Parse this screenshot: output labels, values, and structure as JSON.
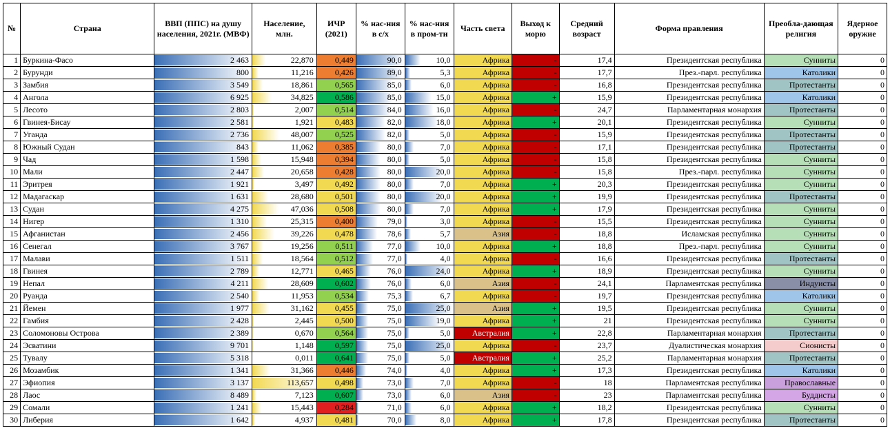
{
  "headers": {
    "num": "№",
    "country": "Страна",
    "gdp": "ВВП (ППС) на душу населения, 2021г. (МВФ)",
    "pop": "Население, млн.",
    "hdi": "ИЧР (2021)",
    "agr": "% нас-ния в с/х",
    "ind": "% нас-ния в пром-ти",
    "cont": "Часть света",
    "sea": "Выход к морю",
    "age": "Средний возраст",
    "gov": "Форма правления",
    "rel": "Преобла-дающая религия",
    "nuke": "Ядерное оружие"
  },
  "scales": {
    "gdp_grad": [
      "#3b6fb6",
      "#ffffff"
    ],
    "pop_grad": [
      "#f2d952",
      "#ffffff"
    ],
    "agr_grad": [
      "#3b6fb6",
      "#ffffff"
    ],
    "ind_grad": [
      "#3b6fb6",
      "#ffffff"
    ],
    "gdp_max_frac": 0.98,
    "pop_max": 113.657,
    "agr_min": 70,
    "agr_max": 90,
    "ind_min": 3,
    "ind_max": 25
  },
  "hdi_stops": [
    {
      "v": 0.284,
      "c": "#e02020"
    },
    {
      "v": 0.385,
      "c": "#ed7d31"
    },
    {
      "v": 0.394,
      "c": "#ed7d31"
    },
    {
      "v": 0.4,
      "c": "#ed7d31"
    },
    {
      "v": 0.426,
      "c": "#ed7d31"
    },
    {
      "v": 0.428,
      "c": "#ed7d31"
    },
    {
      "v": 0.446,
      "c": "#ed7d31"
    },
    {
      "v": 0.449,
      "c": "#ed7d31"
    },
    {
      "v": 0.455,
      "c": "#f2d952"
    },
    {
      "v": 0.465,
      "c": "#f2d952"
    },
    {
      "v": 0.478,
      "c": "#f2d952"
    },
    {
      "v": 0.481,
      "c": "#f2d952"
    },
    {
      "v": 0.483,
      "c": "#f2d952"
    },
    {
      "v": 0.492,
      "c": "#f2d952"
    },
    {
      "v": 0.498,
      "c": "#f2d952"
    },
    {
      "v": 0.5,
      "c": "#f2d952"
    },
    {
      "v": 0.501,
      "c": "#f2d952"
    },
    {
      "v": 0.508,
      "c": "#f2d952"
    },
    {
      "v": 0.511,
      "c": "#92d050"
    },
    {
      "v": 0.512,
      "c": "#92d050"
    },
    {
      "v": 0.514,
      "c": "#92d050"
    },
    {
      "v": 0.525,
      "c": "#92d050"
    },
    {
      "v": 0.534,
      "c": "#92d050"
    },
    {
      "v": 0.564,
      "c": "#92d050"
    },
    {
      "v": 0.565,
      "c": "#92d050"
    },
    {
      "v": 0.586,
      "c": "#00b050"
    },
    {
      "v": 0.597,
      "c": "#00b050"
    },
    {
      "v": 0.602,
      "c": "#00b050"
    },
    {
      "v": 0.607,
      "c": "#00b050"
    },
    {
      "v": 0.641,
      "c": "#00b050"
    }
  ],
  "continent_colors": {
    "Африка": "#f2d952",
    "Азия": "#d9c189",
    "Австралия": "#c00000"
  },
  "sea_colors": {
    "+": "#00b050",
    "-": "#c00000"
  },
  "religion_colors": {
    "Сунниты": "#b7dfb7",
    "Католики": "#9fc5e8",
    "Протестанты": "#a0c4c4",
    "Индуисты": "#8a8fa8",
    "Сионисты": "#f4cccc",
    "Православные": "#c9a0dc",
    "Буддисты": "#d5a6e6"
  },
  "rows": [
    {
      "n": 1,
      "country": "Буркина-Фасо",
      "gdp": "2 463",
      "pop": "22,870",
      "hdi": "0,449",
      "hv": 0.449,
      "agr": "90,0",
      "av": 90,
      "ind": "10,0",
      "iv": 10,
      "cont": "Африка",
      "sea": "-",
      "age": "17,4",
      "gov": "Президентская республика",
      "rel": "Сунниты",
      "nuke": "0"
    },
    {
      "n": 2,
      "country": "Бурунди",
      "gdp": "800",
      "pop": "11,216",
      "hdi": "0,426",
      "hv": 0.426,
      "agr": "89,0",
      "av": 89,
      "ind": "5,3",
      "iv": 5.3,
      "cont": "Африка",
      "sea": "-",
      "age": "17,7",
      "gov": "През.-парл. республика",
      "rel": "Католики",
      "nuke": "0"
    },
    {
      "n": 3,
      "country": "Замбия",
      "gdp": "3 549",
      "pop": "18,861",
      "hdi": "0,565",
      "hv": 0.565,
      "agr": "85,0",
      "av": 85,
      "ind": "6,0",
      "iv": 6,
      "cont": "Африка",
      "sea": "-",
      "age": "16,8",
      "gov": "Президентская республика",
      "rel": "Протестанты",
      "nuke": "0"
    },
    {
      "n": 4,
      "country": "Ангола",
      "gdp": "6 925",
      "pop": "34,825",
      "hdi": "0,586",
      "hv": 0.586,
      "agr": "85,0",
      "av": 85,
      "ind": "15,0",
      "iv": 15,
      "cont": "Африка",
      "sea": "+",
      "age": "15,9",
      "gov": "Президентская республика",
      "rel": "Католики",
      "nuke": "0"
    },
    {
      "n": 5,
      "country": "Лесото",
      "gdp": "2 803",
      "pop": "2,007",
      "hdi": "0,514",
      "hv": 0.514,
      "agr": "84,0",
      "av": 84,
      "ind": "16,0",
      "iv": 16,
      "cont": "Африка",
      "sea": "-",
      "age": "24,7",
      "gov": "Парламентарная монархия",
      "rel": "Протестанты",
      "nuke": "0"
    },
    {
      "n": 6,
      "country": "Гвинея-Бисау",
      "gdp": "2 581",
      "pop": "1,921",
      "hdi": "0,483",
      "hv": 0.483,
      "agr": "82,0",
      "av": 82,
      "ind": "18,0",
      "iv": 18,
      "cont": "Африка",
      "sea": "+",
      "age": "20,1",
      "gov": "Президентская республика",
      "rel": "Сунниты",
      "nuke": "0"
    },
    {
      "n": 7,
      "country": "Уганда",
      "gdp": "2 736",
      "pop": "48,007",
      "hdi": "0,525",
      "hv": 0.525,
      "agr": "82,0",
      "av": 82,
      "ind": "5,0",
      "iv": 5,
      "cont": "Африка",
      "sea": "-",
      "age": "15,9",
      "gov": "Президентская республика",
      "rel": "Протестанты",
      "nuke": "0"
    },
    {
      "n": 8,
      "country": "Южный Судан",
      "gdp": "843",
      "pop": "11,062",
      "hdi": "0,385",
      "hv": 0.385,
      "agr": "80,0",
      "av": 80,
      "ind": "7,0",
      "iv": 7,
      "cont": "Африка",
      "sea": "-",
      "age": "17,1",
      "gov": "Президентская республика",
      "rel": "Протестанты",
      "nuke": "0"
    },
    {
      "n": 9,
      "country": "Чад",
      "gdp": "1 598",
      "pop": "15,948",
      "hdi": "0,394",
      "hv": 0.394,
      "agr": "80,0",
      "av": 80,
      "ind": "5,0",
      "iv": 5,
      "cont": "Африка",
      "sea": "-",
      "age": "15,8",
      "gov": "Президентская республика",
      "rel": "Сунниты",
      "nuke": "0"
    },
    {
      "n": 10,
      "country": "Мали",
      "gdp": "2 447",
      "pop": "20,658",
      "hdi": "0,428",
      "hv": 0.428,
      "agr": "80,0",
      "av": 80,
      "ind": "20,0",
      "iv": 20,
      "cont": "Африка",
      "sea": "-",
      "age": "15,8",
      "gov": "През.-парл. республика",
      "rel": "Сунниты",
      "nuke": "0"
    },
    {
      "n": 11,
      "country": "Эритрея",
      "gdp": "1 921",
      "pop": "3,497",
      "hdi": "0,492",
      "hv": 0.492,
      "agr": "80,0",
      "av": 80,
      "ind": "7,0",
      "iv": 7,
      "cont": "Африка",
      "sea": "+",
      "age": "20,3",
      "gov": "Президентская республика",
      "rel": "Сунниты",
      "nuke": "0"
    },
    {
      "n": 12,
      "country": "Мадагаскар",
      "gdp": "1 631",
      "pop": "28,680",
      "hdi": "0,501",
      "hv": 0.501,
      "agr": "80,0",
      "av": 80,
      "ind": "20,0",
      "iv": 20,
      "cont": "Африка",
      "sea": "+",
      "age": "19,9",
      "gov": "Президентская республика",
      "rel": "Протестанты",
      "nuke": "0"
    },
    {
      "n": 13,
      "country": "Судан",
      "gdp": "4 275",
      "pop": "47,036",
      "hdi": "0,508",
      "hv": 0.508,
      "agr": "80,0",
      "av": 80,
      "ind": "7,0",
      "iv": 7,
      "cont": "Африка",
      "sea": "+",
      "age": "17,9",
      "gov": "Президентская республика",
      "rel": "Сунниты",
      "nuke": "0"
    },
    {
      "n": 14,
      "country": "Нигер",
      "gdp": "1 310",
      "pop": "25,315",
      "hdi": "0,400",
      "hv": 0.4,
      "agr": "79,0",
      "av": 79,
      "ind": "3,0",
      "iv": 3,
      "cont": "Африка",
      "sea": "-",
      "age": "15,5",
      "gov": "Президентская республика",
      "rel": "Сунниты",
      "nuke": "0"
    },
    {
      "n": 15,
      "country": "Афганистан",
      "gdp": "2 456",
      "pop": "39,226",
      "hdi": "0,478",
      "hv": 0.478,
      "agr": "78,6",
      "av": 78.6,
      "ind": "5,7",
      "iv": 5.7,
      "cont": "Азия",
      "sea": "-",
      "age": "18,8",
      "gov": "Исламская республика",
      "rel": "Сунниты",
      "nuke": "0"
    },
    {
      "n": 16,
      "country": "Сенегал",
      "gdp": "3 767",
      "pop": "19,256",
      "hdi": "0,511",
      "hv": 0.511,
      "agr": "77,0",
      "av": 77,
      "ind": "10,0",
      "iv": 10,
      "cont": "Африка",
      "sea": "+",
      "age": "18,8",
      "gov": "През.-парл. республика",
      "rel": "Сунниты",
      "nuke": "0"
    },
    {
      "n": 17,
      "country": "Малави",
      "gdp": "1 511",
      "pop": "18,564",
      "hdi": "0,512",
      "hv": 0.512,
      "agr": "77,0",
      "av": 77,
      "ind": "4,0",
      "iv": 4,
      "cont": "Африка",
      "sea": "-",
      "age": "16,6",
      "gov": "Президентская республика",
      "rel": "Протестанты",
      "nuke": "0"
    },
    {
      "n": 18,
      "country": "Гвинея",
      "gdp": "2 789",
      "pop": "12,771",
      "hdi": "0,465",
      "hv": 0.465,
      "agr": "76,0",
      "av": 76,
      "ind": "24,0",
      "iv": 24,
      "cont": "Африка",
      "sea": "+",
      "age": "18,9",
      "gov": "Президентская республика",
      "rel": "Сунниты",
      "nuke": "0"
    },
    {
      "n": 19,
      "country": "Непал",
      "gdp": "4 211",
      "pop": "28,609",
      "hdi": "0,602",
      "hv": 0.602,
      "agr": "76,0",
      "av": 76,
      "ind": "6,0",
      "iv": 6,
      "cont": "Азия",
      "sea": "-",
      "age": "24,1",
      "gov": "Парламентская республика",
      "rel": "Индуисты",
      "nuke": "0"
    },
    {
      "n": 20,
      "country": "Руанда",
      "gdp": "2 540",
      "pop": "11,953",
      "hdi": "0,534",
      "hv": 0.534,
      "agr": "75,3",
      "av": 75.3,
      "ind": "6,7",
      "iv": 6.7,
      "cont": "Африка",
      "sea": "-",
      "age": "19,7",
      "gov": "Президентская республика",
      "rel": "Католики",
      "nuke": "0"
    },
    {
      "n": 21,
      "country": "Йемен",
      "gdp": "1 977",
      "pop": "31,162",
      "hdi": "0,455",
      "hv": 0.455,
      "agr": "75,0",
      "av": 75,
      "ind": "25,0",
      "iv": 25,
      "cont": "Азия",
      "sea": "+",
      "age": "19,5",
      "gov": "Президентская республика",
      "rel": "Сунниты",
      "nuke": "0"
    },
    {
      "n": 22,
      "country": "Гамбия",
      "gdp": "2 428",
      "pop": "2,445",
      "hdi": "0,500",
      "hv": 0.5,
      "agr": "75,0",
      "av": 75,
      "ind": "19,0",
      "iv": 19,
      "cont": "Африка",
      "sea": "+",
      "age": "21",
      "gov": "Президентская республика",
      "rel": "Сунниты",
      "nuke": "0"
    },
    {
      "n": 23,
      "country": "Соломоновы Острова",
      "gdp": "2 389",
      "pop": "0,670",
      "hdi": "0,564",
      "hv": 0.564,
      "agr": "75,0",
      "av": 75,
      "ind": "5,0",
      "iv": 5,
      "cont": "Австралия",
      "sea": "+",
      "age": "22,8",
      "gov": "Парламентарная монархия",
      "rel": "Протестанты",
      "nuke": "0"
    },
    {
      "n": 24,
      "country": "Эсватини",
      "gdp": "9 701",
      "pop": "1,148",
      "hdi": "0,597",
      "hv": 0.597,
      "agr": "75,0",
      "av": 75,
      "ind": "25,0",
      "iv": 25,
      "cont": "Африка",
      "sea": "-",
      "age": "23,7",
      "gov": "Дуалистическая монархия",
      "rel": "Сионисты",
      "nuke": "0"
    },
    {
      "n": 25,
      "country": "Тувалу",
      "gdp": "5 318",
      "pop": "0,011",
      "hdi": "0,641",
      "hv": 0.641,
      "agr": "75,0",
      "av": 75,
      "ind": "5,0",
      "iv": 5,
      "cont": "Австралия",
      "sea": "+",
      "age": "25,2",
      "gov": "Парламентарная монархия",
      "rel": "Протестанты",
      "nuke": "0"
    },
    {
      "n": 26,
      "country": "Мозамбик",
      "gdp": "1 341",
      "pop": "31,366",
      "hdi": "0,446",
      "hv": 0.446,
      "agr": "74,0",
      "av": 74,
      "ind": "4,0",
      "iv": 4,
      "cont": "Африка",
      "sea": "+",
      "age": "17,3",
      "gov": "Президентская республика",
      "rel": "Католики",
      "nuke": "0"
    },
    {
      "n": 27,
      "country": "Эфиопия",
      "gdp": "3 137",
      "pop": "113,657",
      "hdi": "0,498",
      "hv": 0.498,
      "agr": "73,0",
      "av": 73,
      "ind": "7,0",
      "iv": 7,
      "cont": "Африка",
      "sea": "-",
      "age": "18",
      "gov": "Парламентская республика",
      "rel": "Православные",
      "nuke": "0"
    },
    {
      "n": 28,
      "country": "Лаос",
      "gdp": "8 489",
      "pop": "7,123",
      "hdi": "0,607",
      "hv": 0.607,
      "agr": "73,0",
      "av": 73,
      "ind": "6,0",
      "iv": 6,
      "cont": "Азия",
      "sea": "-",
      "age": "23",
      "gov": "Парламентская республика",
      "rel": "Буддисты",
      "nuke": "0"
    },
    {
      "n": 29,
      "country": "Сомали",
      "gdp": "1 241",
      "pop": "15,443",
      "hdi": "0,284",
      "hv": 0.284,
      "agr": "71,0",
      "av": 71,
      "ind": "6,0",
      "iv": 6,
      "cont": "Африка",
      "sea": "+",
      "age": "18,2",
      "gov": "Президентская республика",
      "rel": "Сунниты",
      "nuke": "0"
    },
    {
      "n": 30,
      "country": "Либерия",
      "gdp": "1 642",
      "pop": "4,937",
      "hdi": "0,481",
      "hv": 0.481,
      "agr": "70,0",
      "av": 70,
      "ind": "8,0",
      "iv": 8,
      "cont": "Африка",
      "sea": "+",
      "age": "17,8",
      "gov": "Президентская республика",
      "rel": "Протестанты",
      "nuke": "0"
    }
  ]
}
